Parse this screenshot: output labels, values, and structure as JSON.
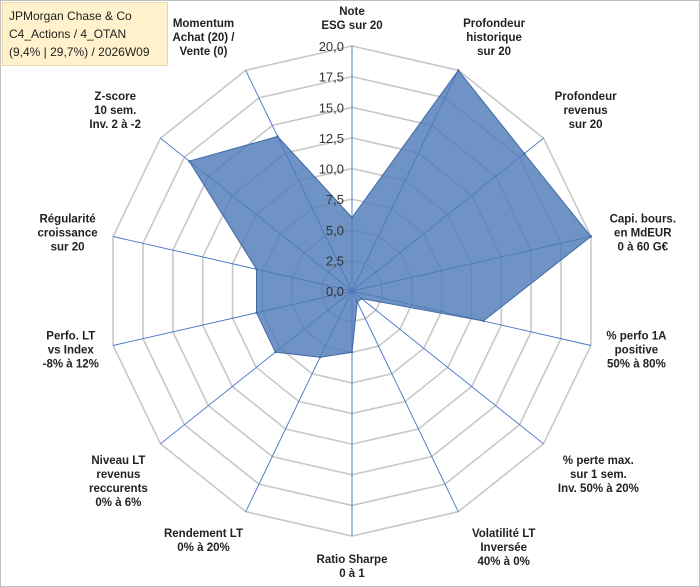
{
  "info": {
    "line1": "JPMorgan Chase & Co",
    "line2": "C4_Actions / 4_OTAN",
    "line3": "(9,4% | 29,7%) / 2026W09"
  },
  "colors": {
    "fill": "#4f7bb8",
    "stroke": "#3f6aa8",
    "grid": "#c8c8c8",
    "spoke": "#4472c4"
  },
  "chart_data": {
    "type": "radar",
    "rmin": 0,
    "rmax": 20,
    "tick_step": 2.5,
    "tick_labels": [
      "0,0",
      "2,5",
      "5,0",
      "7,5",
      "10,0",
      "12,5",
      "15,0",
      "17,5",
      "20,0"
    ],
    "grid": true,
    "categories": [
      [
        "Note",
        "ESG sur 20"
      ],
      [
        "Profondeur",
        "historique",
        "sur 20"
      ],
      [
        "Profondeur",
        "revenus",
        "sur 20"
      ],
      [
        "Capi. bours.",
        "en MdEUR",
        "0 à 60 G€"
      ],
      [
        "% perfo 1A",
        "positive",
        "50% à 80%"
      ],
      [
        "% perte max.",
        "sur 1 sem.",
        "Inv. 50% à 20%"
      ],
      [
        "Volatilité LT",
        "Inversée",
        "40% à 0%"
      ],
      [
        "Ratio Sharpe",
        "0 à 1"
      ],
      [
        "Rendement LT",
        "0% à 20%"
      ],
      [
        "Niveau LT",
        "revenus",
        "reccurents",
        "0% à 6%"
      ],
      [
        "Perfo. LT",
        "vs Index",
        "-8% à 12%"
      ],
      [
        "Régularité",
        "croissance",
        "sur 20"
      ],
      [
        "Z-score",
        "10 sem.",
        "Inv. 2 à -2"
      ],
      [
        "Momentum",
        "Achat (20) /",
        "Vente (0)"
      ]
    ],
    "values": [
      6,
      20,
      18,
      20,
      11,
      1,
      1,
      5,
      6,
      8,
      8,
      8,
      17,
      14
    ]
  }
}
